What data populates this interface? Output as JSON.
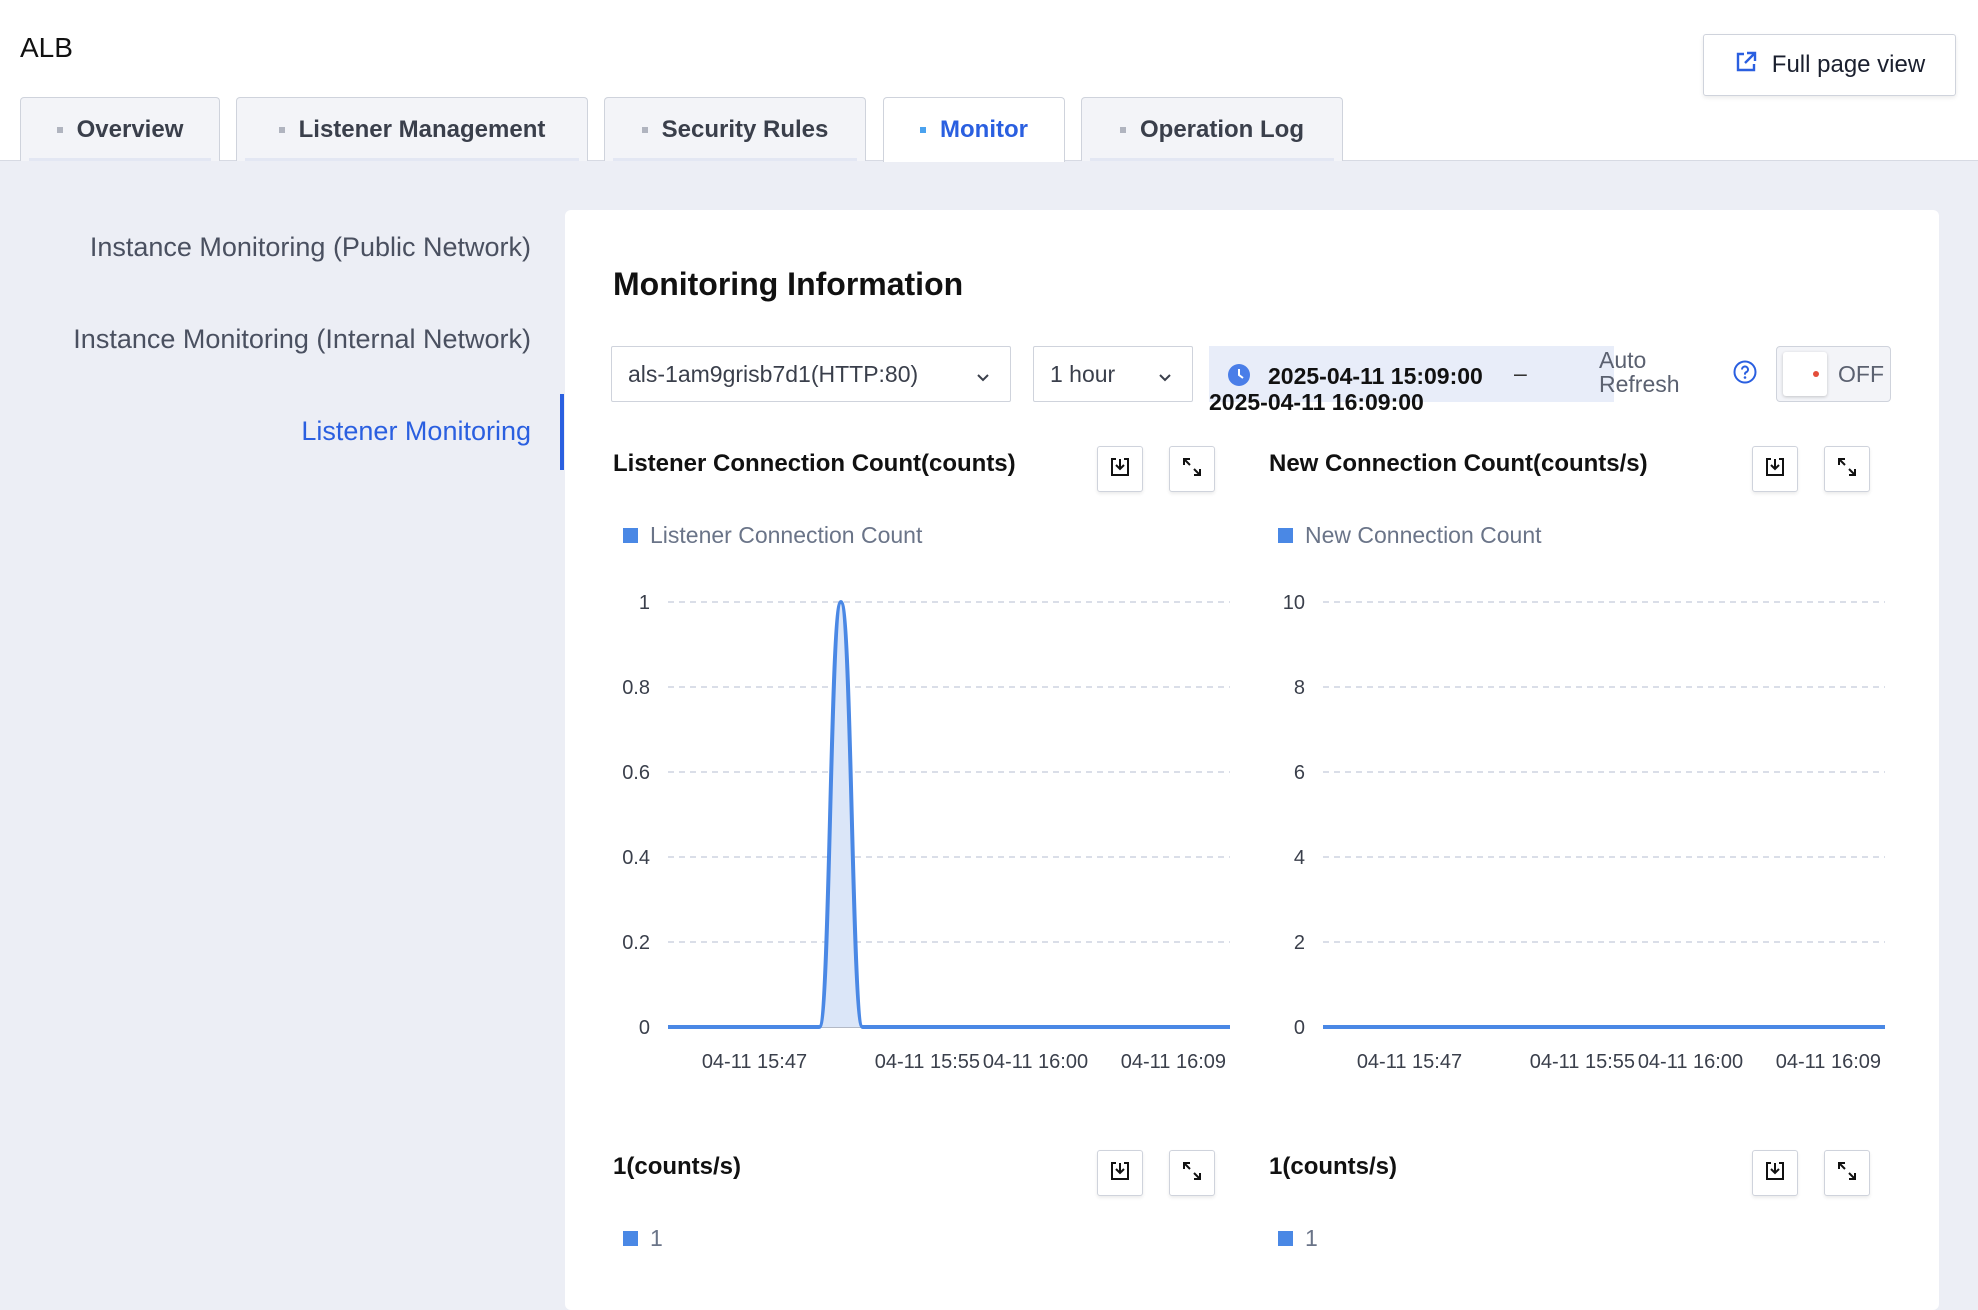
{
  "app": {
    "title": "ALB",
    "full_page_label": "Full page view"
  },
  "tabs": [
    {
      "label": "Overview",
      "active": false
    },
    {
      "label": "Listener Management",
      "active": false
    },
    {
      "label": "Security Rules",
      "active": false
    },
    {
      "label": "Monitor",
      "active": true
    },
    {
      "label": "Operation Log",
      "active": false
    }
  ],
  "sidebar": {
    "items": [
      {
        "label": "Instance Monitoring (Public Network)",
        "active": false
      },
      {
        "label": "Instance Monitoring (Internal Network)",
        "active": false
      },
      {
        "label": "Listener Monitoring",
        "active": true
      }
    ]
  },
  "panel": {
    "title": "Monitoring Information"
  },
  "filters": {
    "listener": "als-1am9grisb7d1(HTTP:80)",
    "period": "1 hour",
    "time_start": "2025-04-11 15:09:00",
    "time_sep": "–",
    "time_end": "2025-04-11 16:09:00",
    "auto_refresh_label": "Auto Refresh",
    "toggle_state": "OFF"
  },
  "colors": {
    "accent": "#2a5fe0",
    "series": "#4a88e5",
    "series_fill": "#dbe6f8",
    "off_dot": "#e34d3a"
  },
  "chart_data": [
    {
      "type": "area",
      "title": "Listener Connection Count(counts)",
      "legend": [
        "Listener Connection Count"
      ],
      "x_ticks": [
        "04-11 15:47",
        "04-11 15:55",
        "04-11 16:00",
        "04-11 16:09"
      ],
      "x_tick_minutes": [
        38,
        46,
        51,
        60
      ],
      "x_range_minutes": [
        34,
        60
      ],
      "y_ticks": [
        "0",
        "0.2",
        "0.4",
        "0.6",
        "0.8",
        "1"
      ],
      "ylim": [
        0,
        1
      ],
      "series": [
        {
          "name": "Listener Connection Count",
          "x_minutes": [
            34,
            40,
            41,
            42,
            43,
            44,
            60
          ],
          "values": [
            0,
            0,
            0,
            1,
            0,
            0,
            0
          ]
        }
      ]
    },
    {
      "type": "line",
      "title": "New Connection Count(counts/s)",
      "legend": [
        "New Connection Count"
      ],
      "x_ticks": [
        "04-11 15:47",
        "04-11 15:55",
        "04-11 16:00",
        "04-11 16:09"
      ],
      "x_tick_minutes": [
        38,
        46,
        51,
        60
      ],
      "x_range_minutes": [
        34,
        60
      ],
      "y_ticks": [
        "0",
        "2",
        "4",
        "6",
        "8",
        "10"
      ],
      "ylim": [
        0,
        10
      ],
      "series": [
        {
          "name": "New Connection Count",
          "x_minutes": [
            34,
            60
          ],
          "values": [
            0,
            0
          ]
        }
      ]
    },
    {
      "type": "line",
      "title": "1(counts/s)",
      "legend": [
        "1"
      ]
    },
    {
      "type": "line",
      "title": "1(counts/s)",
      "legend": [
        "1"
      ]
    }
  ]
}
